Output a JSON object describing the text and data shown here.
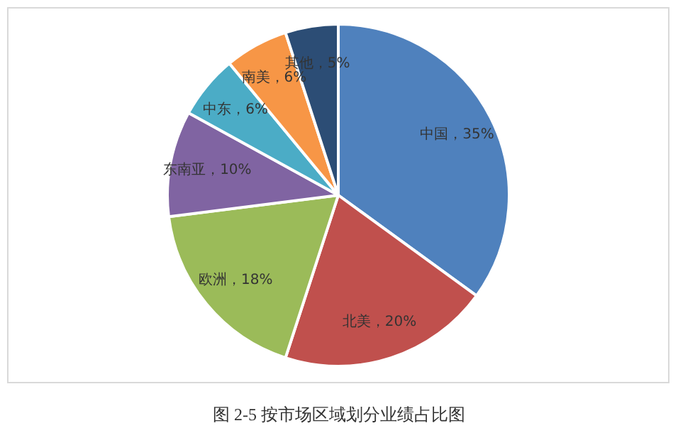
{
  "chart_data": {
    "type": "pie",
    "title": "图 2-5 按市场区域划分业绩占比图",
    "categories": [
      "中国",
      "北美",
      "欧洲",
      "东南亚",
      "中东",
      "南美",
      "其他"
    ],
    "values": [
      35,
      20,
      18,
      10,
      6,
      6,
      5
    ],
    "value_labels": [
      "35%",
      "20%",
      "18%",
      "10%",
      "6%",
      "6%",
      "5%"
    ],
    "colors": [
      "#4f81bd",
      "#c0504d",
      "#9bbb59",
      "#8064a2",
      "#4bacc6",
      "#f79646",
      "#2c4d75"
    ],
    "legend": false
  }
}
